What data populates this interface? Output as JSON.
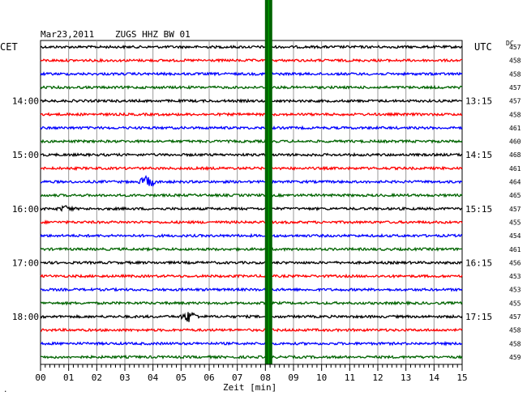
{
  "header": {
    "date": "Mar23,2011",
    "station": "ZUGS HHZ BW 01",
    "left_zone": "CET",
    "right_zone": "UTC",
    "dc_label": "DC"
  },
  "footer": {
    "xlabel": "Zeit [min]",
    "corner_mark": "."
  },
  "chart_data": {
    "type": "line",
    "title": "Mar23,2011 ZUGS HHZ BW 01",
    "xlabel": "Zeit [min]",
    "xlim": [
      0,
      15
    ],
    "x_ticks": [
      "00",
      "01",
      "02",
      "03",
      "04",
      "05",
      "06",
      "07",
      "08",
      "09",
      "10",
      "11",
      "12",
      "13",
      "14",
      "15"
    ],
    "trace_minutes": 15,
    "trace_count": 24,
    "trace_colors": [
      "#000000",
      "#ff0000",
      "#0000ff",
      "#006400"
    ],
    "cet_labels": [
      {
        "trace": 4,
        "text": "14:00"
      },
      {
        "trace": 8,
        "text": "15:00"
      },
      {
        "trace": 12,
        "text": "16:00"
      },
      {
        "trace": 16,
        "text": "17:00"
      },
      {
        "trace": 20,
        "text": "18:00"
      }
    ],
    "utc_labels": [
      {
        "trace": 4,
        "text": "13:15"
      },
      {
        "trace": 8,
        "text": "14:15"
      },
      {
        "trace": 12,
        "text": "15:15"
      },
      {
        "trace": 16,
        "text": "16:15"
      },
      {
        "trace": 20,
        "text": "17:15"
      }
    ],
    "dc_offsets": [
      "457",
      "458",
      "458",
      "457",
      "457",
      "458",
      "461",
      "460",
      "468",
      "461",
      "464",
      "465",
      "457",
      "455",
      "454",
      "461",
      "456",
      "453",
      "453",
      "455",
      "457",
      "458",
      "458",
      "459"
    ],
    "events": [
      {
        "trace": 10,
        "minute": 3.8,
        "amplitude": 7
      },
      {
        "trace": 20,
        "minute": 5.3,
        "amplitude": 7
      },
      {
        "trace": 12,
        "minute": 0.9,
        "amplitude": 3
      }
    ],
    "gap_marker": {
      "minute": 8.1,
      "color": "#006400"
    }
  }
}
